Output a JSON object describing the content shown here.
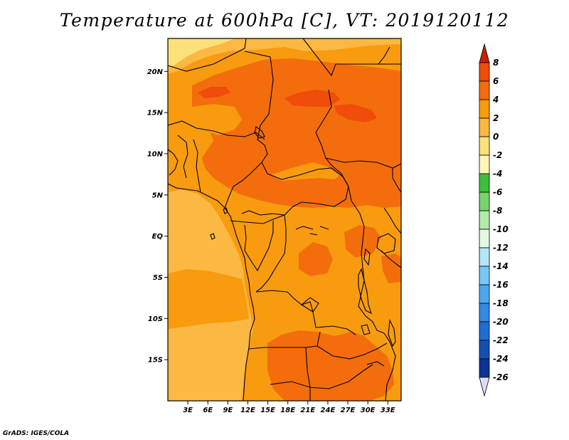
{
  "title": "Temperature at 600hPa [C], VT: 2019120112",
  "credit": "GrADS: IGES/COLA",
  "map": {
    "lon_range": [
      0,
      35
    ],
    "lat_range": [
      -20,
      24
    ],
    "lat_ticks": [
      {
        "value": 20,
        "label": "20N"
      },
      {
        "value": 15,
        "label": "15N"
      },
      {
        "value": 10,
        "label": "10N"
      },
      {
        "value": 5,
        "label": "5N"
      },
      {
        "value": 0,
        "label": "EQ"
      },
      {
        "value": -5,
        "label": "5S"
      },
      {
        "value": -10,
        "label": "10S"
      },
      {
        "value": -15,
        "label": "15S"
      }
    ],
    "lon_ticks": [
      {
        "value": 3,
        "label": "3E"
      },
      {
        "value": 6,
        "label": "6E"
      },
      {
        "value": 9,
        "label": "9E"
      },
      {
        "value": 12,
        "label": "12E"
      },
      {
        "value": 15,
        "label": "15E"
      },
      {
        "value": 18,
        "label": "18E"
      },
      {
        "value": 21,
        "label": "21E"
      },
      {
        "value": 24,
        "label": "24E"
      },
      {
        "value": 27,
        "label": "27E"
      },
      {
        "value": 30,
        "label": "30E"
      },
      {
        "value": 33,
        "label": "33E"
      }
    ]
  },
  "colorbar": {
    "levels": [
      {
        "label": "8",
        "color": "#e02810"
      },
      {
        "label": "6",
        "color": "#f04c0a"
      },
      {
        "label": "4",
        "color": "#f36d0d"
      },
      {
        "label": "2",
        "color": "#f89b0e"
      },
      {
        "label": "0",
        "color": "#fbb843"
      },
      {
        "label": "-2",
        "color": "#fce07a"
      },
      {
        "label": "-4",
        "color": "#fff5b8"
      },
      {
        "label": "-6",
        "color": "#3cbf3c"
      },
      {
        "label": "-8",
        "color": "#78d26e"
      },
      {
        "label": "-10",
        "color": "#b4eaaa"
      },
      {
        "label": "-12",
        "color": "#e4f8e4"
      },
      {
        "label": "-14",
        "color": "#b4e6fa"
      },
      {
        "label": "-16",
        "color": "#78c8f6"
      },
      {
        "label": "-18",
        "color": "#4ba6ef"
      },
      {
        "label": "-20",
        "color": "#3489e2"
      },
      {
        "label": "-22",
        "color": "#1f6ed6"
      },
      {
        "label": "-24",
        "color": "#1450b4"
      },
      {
        "label": "-26",
        "color": "#0c3296"
      }
    ],
    "top_triangle_color": "#c82000",
    "bottom_triangle_color": "#dcdcf6"
  }
}
